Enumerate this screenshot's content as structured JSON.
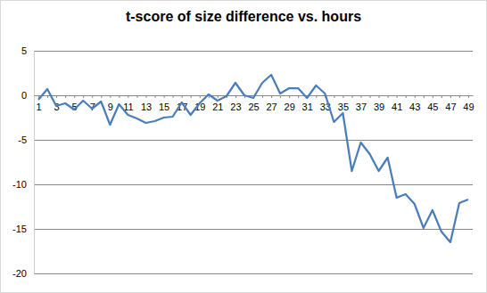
{
  "chart_data": {
    "type": "line",
    "title": "t-score of size difference vs. hours",
    "categories": [
      1,
      null,
      3,
      null,
      5,
      null,
      7,
      null,
      9,
      null,
      11,
      null,
      13,
      null,
      15,
      null,
      17,
      null,
      19,
      null,
      21,
      null,
      23,
      null,
      25,
      null,
      27,
      null,
      29,
      null,
      31,
      null,
      33,
      null,
      35,
      null,
      37,
      null,
      39,
      null,
      41,
      null,
      43,
      null,
      45,
      null,
      47,
      null,
      49
    ],
    "values": [
      -0.5,
      0.7,
      -1.2,
      -0.9,
      -1.6,
      -0.6,
      -1.5,
      -0.7,
      -3.3,
      -1.0,
      -2.2,
      -2.6,
      -3.1,
      -2.9,
      -2.5,
      -2.4,
      -0.8,
      -2.2,
      -0.9,
      0.1,
      -0.6,
      -0.1,
      1.4,
      0.0,
      -0.3,
      1.4,
      2.3,
      0.2,
      0.8,
      0.8,
      -0.3,
      1.1,
      0.2,
      -3.0,
      -2.0,
      -8.5,
      -5.3,
      -6.6,
      -8.5,
      -7.0,
      -11.5,
      -11.1,
      -12.2,
      -14.9,
      -12.9,
      -15.3,
      -16.5,
      -12.1,
      -11.7
    ],
    "color": "#4a7ebb",
    "ylim": [
      -20,
      5
    ],
    "yticks": [
      -20,
      -15,
      -10,
      -5,
      0,
      5
    ],
    "grid": true
  }
}
